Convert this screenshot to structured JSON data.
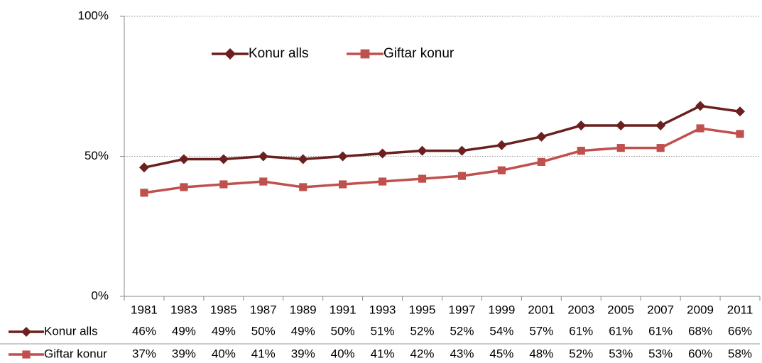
{
  "chart_data": {
    "type": "line",
    "categories": [
      "1981",
      "1983",
      "1985",
      "1987",
      "1989",
      "1991",
      "1993",
      "1995",
      "1997",
      "1999",
      "2001",
      "2003",
      "2005",
      "2007",
      "2009",
      "2011"
    ],
    "series": [
      {
        "name": "Konur alls",
        "color": "#6b1f1f",
        "marker": "diamond",
        "values": [
          46,
          49,
          49,
          50,
          49,
          50,
          51,
          52,
          52,
          54,
          57,
          61,
          61,
          61,
          68,
          66
        ],
        "value_labels": [
          "46%",
          "49%",
          "49%",
          "50%",
          "49%",
          "50%",
          "51%",
          "52%",
          "52%",
          "54%",
          "57%",
          "61%",
          "61%",
          "61%",
          "68%",
          "66%"
        ]
      },
      {
        "name": "Giftar konur",
        "color": "#c0504d",
        "marker": "square",
        "values": [
          37,
          39,
          40,
          41,
          39,
          40,
          41,
          42,
          43,
          45,
          48,
          52,
          53,
          53,
          60,
          58
        ],
        "value_labels": [
          "37%",
          "39%",
          "40%",
          "41%",
          "39%",
          "40%",
          "41%",
          "42%",
          "43%",
          "45%",
          "48%",
          "52%",
          "53%",
          "53%",
          "60%",
          "58%"
        ]
      }
    ],
    "ylim": [
      0,
      100
    ],
    "yticks": [
      {
        "value": 0,
        "label": "0%"
      },
      {
        "value": 50,
        "label": "50%"
      },
      {
        "value": 100,
        "label": "100%"
      }
    ],
    "grid": true,
    "legend": "top-left"
  }
}
